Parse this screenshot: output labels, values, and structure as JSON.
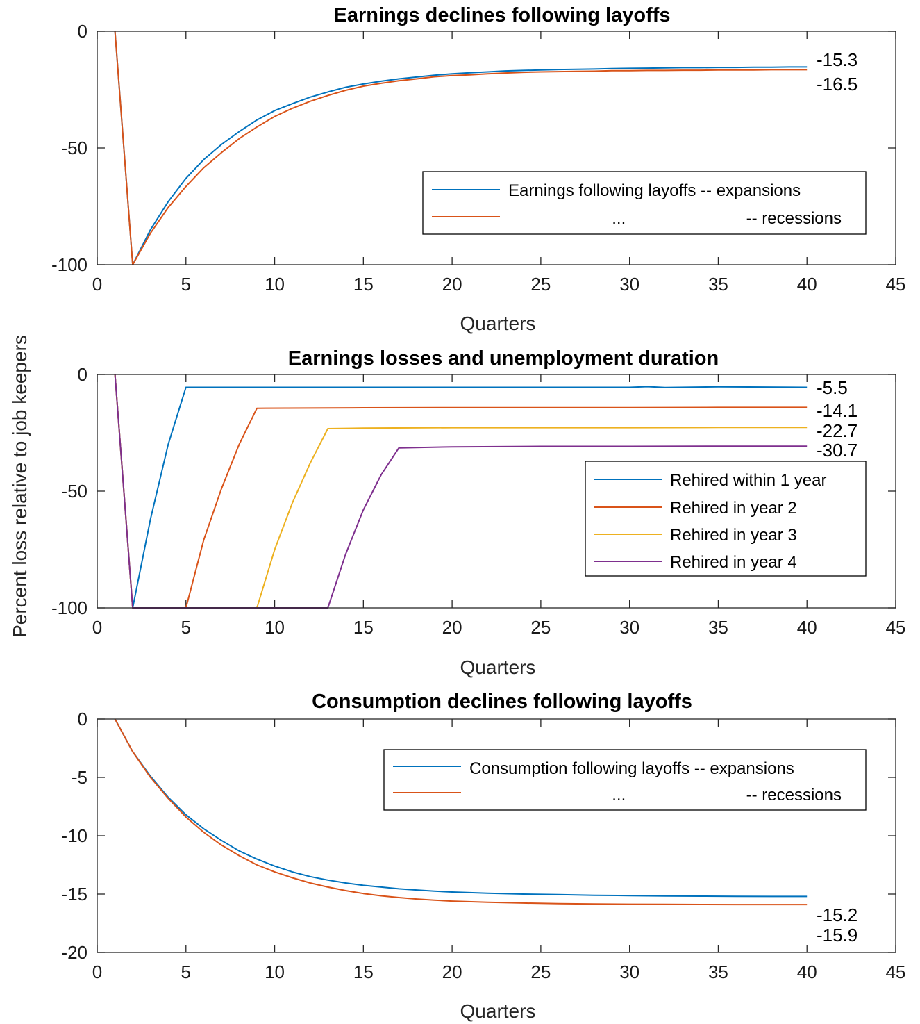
{
  "ylabel": "Percent loss relative to job keepers",
  "chart_data": [
    {
      "type": "line",
      "title": "Earnings declines following layoffs",
      "xlabel": "Quarters",
      "xlim": [
        0,
        45
      ],
      "ylim": [
        -100,
        0
      ],
      "xticks": [
        0,
        5,
        10,
        15,
        20,
        25,
        30,
        35,
        40,
        45
      ],
      "yticks": [
        -100,
        -50,
        0
      ],
      "legend_position": "center-right",
      "legend_lines": [
        "Earnings following layoffs -- expansions",
        "...                          -- recessions"
      ],
      "series": [
        {
          "color": "#0072BD",
          "x": [
            1,
            2,
            3,
            4,
            5,
            6,
            7,
            8,
            9,
            10,
            11,
            12,
            13,
            14,
            15,
            16,
            17,
            18,
            19,
            20,
            21,
            22,
            23,
            24,
            25,
            26,
            27,
            28,
            29,
            30,
            31,
            32,
            33,
            34,
            35,
            36,
            37,
            38,
            39,
            40
          ],
          "y": [
            0,
            -100,
            -85,
            -73,
            -63,
            -55,
            -48.5,
            -43,
            -38,
            -34,
            -31,
            -28.2,
            -26,
            -24,
            -22.6,
            -21.4,
            -20.4,
            -19.6,
            -18.8,
            -18.2,
            -17.8,
            -17.4,
            -17,
            -16.8,
            -16.6,
            -16.4,
            -16.3,
            -16.2,
            -16,
            -15.9,
            -15.8,
            -15.7,
            -15.6,
            -15.6,
            -15.5,
            -15.5,
            -15.4,
            -15.4,
            -15.3,
            -15.3
          ]
        },
        {
          "color": "#D95319",
          "x": [
            1,
            2,
            3,
            4,
            5,
            6,
            7,
            8,
            9,
            10,
            11,
            12,
            13,
            14,
            15,
            16,
            17,
            18,
            19,
            20,
            21,
            22,
            23,
            24,
            25,
            26,
            27,
            28,
            29,
            30,
            31,
            32,
            33,
            34,
            35,
            36,
            37,
            38,
            39,
            40
          ],
          "y": [
            0,
            -100,
            -86.5,
            -75.5,
            -66.5,
            -58.5,
            -52,
            -46,
            -41,
            -36.5,
            -33,
            -30,
            -27.5,
            -25.3,
            -23.5,
            -22.3,
            -21.2,
            -20.4,
            -19.5,
            -19,
            -18.7,
            -18.2,
            -17.9,
            -17.6,
            -17.4,
            -17.3,
            -17.2,
            -17.1,
            -16.9,
            -16.9,
            -16.8,
            -16.8,
            -16.7,
            -16.7,
            -16.6,
            -16.6,
            -16.6,
            -16.5,
            -16.5,
            -16.5
          ]
        }
      ],
      "end_labels": [
        "-15.3",
        "-16.5"
      ]
    },
    {
      "type": "line",
      "title": "Earnings losses and unemployment duration",
      "xlabel": "Quarters",
      "xlim": [
        0,
        45
      ],
      "ylim": [
        -100,
        0
      ],
      "xticks": [
        0,
        5,
        10,
        15,
        20,
        25,
        30,
        35,
        40,
        45
      ],
      "yticks": [
        -100,
        -50,
        0
      ],
      "legend_position": "center-right",
      "series": [
        {
          "name": "Rehired within 1 year",
          "color": "#0072BD",
          "x": [
            1,
            2,
            3,
            4,
            5,
            10,
            15,
            20,
            25,
            30,
            31,
            32,
            35,
            40
          ],
          "y": [
            0,
            -100,
            -62,
            -30,
            -5.5,
            -5.5,
            -5.5,
            -5.5,
            -5.5,
            -5.5,
            -5.2,
            -5.6,
            -5.3,
            -5.5
          ]
        },
        {
          "name": "Rehired in year 2",
          "color": "#D95319",
          "x": [
            1,
            2,
            5,
            6,
            7,
            8,
            9,
            15,
            20,
            25,
            30,
            35,
            40
          ],
          "y": [
            0,
            -100,
            -100,
            -71,
            -49,
            -30,
            -14.5,
            -14.3,
            -14.2,
            -14.2,
            -14.2,
            -14.1,
            -14.1
          ]
        },
        {
          "name": "Rehired in year 3",
          "color": "#EDB120",
          "x": [
            1,
            2,
            9,
            10,
            11,
            12,
            13,
            15,
            20,
            25,
            30,
            35,
            40
          ],
          "y": [
            0,
            -100,
            -100,
            -75,
            -55,
            -38,
            -23.2,
            -23,
            -22.8,
            -22.8,
            -22.8,
            -22.7,
            -22.7
          ]
        },
        {
          "name": "Rehired in year 4",
          "color": "#7E2F8E",
          "x": [
            1,
            2,
            13,
            14,
            15,
            16,
            17,
            20,
            25,
            30,
            35,
            40
          ],
          "y": [
            0,
            -100,
            -100,
            -77,
            -58,
            -43,
            -31.5,
            -31,
            -30.8,
            -30.8,
            -30.7,
            -30.7
          ]
        }
      ],
      "end_labels": [
        "-5.5",
        "-14.1",
        "-22.7",
        "-30.7"
      ]
    },
    {
      "type": "line",
      "title": "Consumption declines following layoffs",
      "xlabel": "Quarters",
      "xlim": [
        0,
        45
      ],
      "ylim": [
        -20,
        0
      ],
      "xticks": [
        0,
        5,
        10,
        15,
        20,
        25,
        30,
        35,
        40,
        45
      ],
      "yticks": [
        -20,
        -15,
        -10,
        -5,
        0
      ],
      "legend_position": "top-right",
      "legend_lines": [
        "Consumption following layoffs -- expansions",
        "...                          -- recessions"
      ],
      "series": [
        {
          "color": "#0072BD",
          "x": [
            1,
            2,
            3,
            4,
            5,
            6,
            7,
            8,
            9,
            10,
            11,
            12,
            13,
            14,
            15,
            16,
            17,
            18,
            19,
            20,
            22,
            24,
            26,
            28,
            30,
            32,
            34,
            36,
            38,
            40
          ],
          "y": [
            0,
            -2.8,
            -4.9,
            -6.7,
            -8.2,
            -9.4,
            -10.4,
            -11.3,
            -12,
            -12.6,
            -13.1,
            -13.5,
            -13.8,
            -14.05,
            -14.25,
            -14.4,
            -14.55,
            -14.65,
            -14.75,
            -14.82,
            -14.92,
            -15,
            -15.05,
            -15.1,
            -15.13,
            -15.16,
            -15.18,
            -15.19,
            -15.2,
            -15.2
          ]
        },
        {
          "color": "#D95319",
          "x": [
            1,
            2,
            3,
            4,
            5,
            6,
            7,
            8,
            9,
            10,
            11,
            12,
            13,
            14,
            15,
            16,
            17,
            18,
            19,
            20,
            22,
            24,
            26,
            28,
            30,
            32,
            34,
            36,
            38,
            40
          ],
          "y": [
            0,
            -2.8,
            -5,
            -6.8,
            -8.4,
            -9.7,
            -10.8,
            -11.7,
            -12.5,
            -13.1,
            -13.6,
            -14.05,
            -14.4,
            -14.7,
            -14.95,
            -15.15,
            -15.3,
            -15.42,
            -15.52,
            -15.6,
            -15.7,
            -15.77,
            -15.82,
            -15.85,
            -15.87,
            -15.88,
            -15.89,
            -15.9,
            -15.9,
            -15.9
          ]
        }
      ],
      "end_labels": [
        "-15.2",
        "-15.9"
      ]
    }
  ]
}
